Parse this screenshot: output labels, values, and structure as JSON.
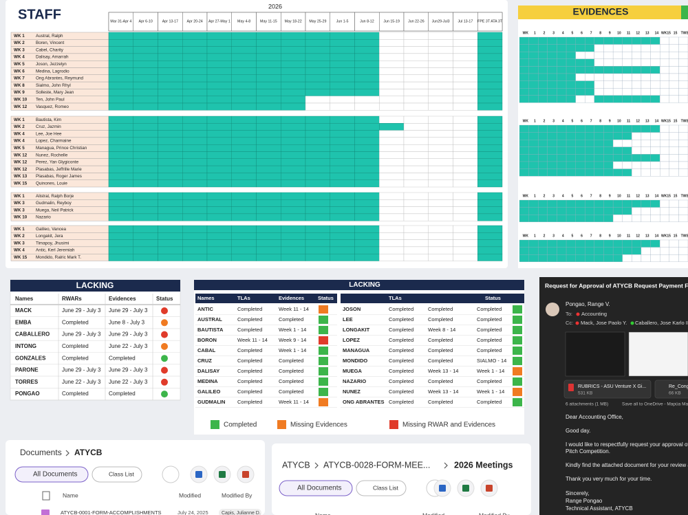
{
  "staff": {
    "title": "STAFF",
    "year": "2026",
    "columns": [
      "Mar 31-Apr 4",
      "Apr 6-10",
      "Apr 13-17",
      "Apr 20-24",
      "Apr 27-May 1",
      "May 4-8",
      "May 11-15",
      "May 18-22",
      "May 25-29",
      "Jun 1-5",
      "Jun 8-12",
      "Jun 15-19",
      "Jun 22-26",
      "Jun29-Jul3",
      "Jul 13-17",
      "FPE 3T ATA 3T"
    ],
    "groups": [
      [
        [
          "WK 1",
          "Austral, Ralph"
        ],
        [
          "WK 2",
          "Boren, Vincent"
        ],
        [
          "WK 3",
          "Cabel, Charity"
        ],
        [
          "WK 4",
          "Dalisay, Amarrah"
        ],
        [
          "WK 5",
          "Joson, Jezzelyn"
        ],
        [
          "WK 6",
          "Medina, Lagrodio"
        ],
        [
          "WK 7",
          "Ong Abrantes, Reymund"
        ],
        [
          "WK 8",
          "Sialmo, John Rhyl"
        ],
        [
          "WK 9",
          "Solleste, Mary Jean"
        ],
        [
          "WK 10",
          "Ten, John Paul"
        ],
        [
          "WK 12",
          "Vasquez, Romeo"
        ]
      ],
      [
        [
          "WK 1",
          "Bautista, Kim"
        ],
        [
          "WK 2",
          "Cruz, Jazmin"
        ],
        [
          "WK 4",
          "Lee, Joe Hee"
        ],
        [
          "WK 4",
          "Lopez, Charmaine"
        ],
        [
          "WK 5",
          "Managua, Prince Christian"
        ],
        [
          "WK 12",
          "Nunez, Rochelle"
        ],
        [
          "WK 12",
          "Perez, Yan Glygiconte"
        ],
        [
          "WK 12",
          "Plasabas, Jeffrille Marie"
        ],
        [
          "WK 13",
          "Plasabas, Roger James"
        ],
        [
          "WK 15",
          "Quinones, Louie"
        ]
      ],
      [
        [
          "WK 1",
          "Alistral, Ralph Borje"
        ],
        [
          "WK 3",
          "Gudmalin, Reyboy"
        ],
        [
          "WK 3",
          "Muega, Neil Patrick"
        ],
        [
          "WK 10",
          "Nazario"
        ]
      ],
      [
        [
          "WK 1",
          "Galileo, Vancea"
        ],
        [
          "WK 2",
          "Longakit, Jera"
        ],
        [
          "WK 3",
          "Timapoy, Jhusimi"
        ],
        [
          "WK 4",
          "Antic, Kerl Jeremiah"
        ],
        [
          "WK 15",
          "Mondido, Ralric Mark T."
        ]
      ]
    ]
  },
  "evidences": {
    "title": "EVIDENCES",
    "columns": [
      "WK",
      "1",
      "2",
      "3",
      "4",
      "5",
      "6",
      "7",
      "8",
      "9",
      "10",
      "11",
      "12",
      "13",
      "14",
      "WK15",
      "15",
      "TWS"
    ]
  },
  "lacking_rwar": {
    "title": "LACKING",
    "headers": [
      "Names",
      "RWARs",
      "Evidences",
      "Status"
    ],
    "rows": [
      {
        "name": "MACK",
        "rwar": "June 29 - July 3",
        "evidence": "June 29 - July 3",
        "color": "#e03b2a"
      },
      {
        "name": "EMBA",
        "rwar": "Completed",
        "evidence": "June 8 - July 3",
        "color": "#f07b22"
      },
      {
        "name": "CABALLERO",
        "rwar": "June 29 - July 3",
        "evidence": "June 29 - July 3",
        "color": "#e03b2a"
      },
      {
        "name": "INTONG",
        "rwar": "Completed",
        "evidence": "June 22 - July 3",
        "color": "#f07b22"
      },
      {
        "name": "GONZALES",
        "rwar": "Completed",
        "evidence": "Completed",
        "color": "#3cb54a"
      },
      {
        "name": "PARONE",
        "rwar": "June 29 - July 3",
        "evidence": "June 29 - July 3",
        "color": "#e03b2a"
      },
      {
        "name": "TORRES",
        "rwar": "June 22 - July 3",
        "evidence": "June 22 - July 3",
        "color": "#e03b2a"
      },
      {
        "name": "PONGAO",
        "rwar": "Completed",
        "evidence": "Completed",
        "color": "#3cb54a"
      }
    ]
  },
  "lacking_tla": {
    "title": "LACKING",
    "headers": [
      "Names",
      "TLAs",
      "Evidences",
      "Status"
    ],
    "right_headers": {
      "tlas": "TLAs",
      "status": "Status"
    },
    "left_rows": [
      [
        "ANTIC",
        "Completed",
        "Week 11 - 14",
        "#f07b22"
      ],
      [
        "AUSTRAL",
        "Completed",
        "Completed",
        "#3cb54a"
      ],
      [
        "BAUTISTA",
        "Completed",
        "Week 1 - 14",
        "#3cb54a"
      ],
      [
        "BORON",
        "Week 11 - 14",
        "Week 9 - 14",
        "#e03b2a"
      ],
      [
        "CABAL",
        "Completed",
        "Week 1 - 14",
        "#3cb54a"
      ],
      [
        "CRUZ",
        "Completed",
        "Completed",
        "#3cb54a"
      ],
      [
        "DALISAY",
        "Completed",
        "Completed",
        "#3cb54a"
      ],
      [
        "MEDINA",
        "Completed",
        "Completed",
        "#3cb54a"
      ],
      [
        "GALILEO",
        "Completed",
        "Completed",
        "#3cb54a"
      ],
      [
        "GUDMALIN",
        "Completed",
        "Week 11 - 14",
        "#f07b22"
      ]
    ],
    "right_rows": [
      [
        "JOSON",
        "Completed",
        "Completed",
        "Completed",
        "#3cb54a"
      ],
      [
        "LEE",
        "Completed",
        "Completed",
        "Completed",
        "#3cb54a"
      ],
      [
        "LONGAKIT",
        "Completed",
        "Week 8 - 14",
        "Completed",
        "#3cb54a"
      ],
      [
        "LOPEZ",
        "Completed",
        "Completed",
        "Completed",
        "#3cb54a"
      ],
      [
        "MANAGUA",
        "Completed",
        "Completed",
        "Completed",
        "#3cb54a"
      ],
      [
        "MONDIDO",
        "Completed",
        "Completed",
        "SIALMO - 14",
        "#3cb54a"
      ],
      [
        "MUEGA",
        "Completed",
        "Week 13 - 14",
        "Week 1 - 14",
        "#f07b22"
      ],
      [
        "NAZARIO",
        "Completed",
        "Completed",
        "Completed",
        "#3cb54a"
      ],
      [
        "NUNEZ",
        "Completed",
        "Week 13 - 14",
        "Week 1 - 14",
        "#f07b22"
      ],
      [
        "ONG ABRANTES",
        "Completed",
        "Completed",
        "Completed",
        "#3cb54a"
      ]
    ],
    "legend": [
      {
        "label": "Completed",
        "color": "#3cb54a"
      },
      {
        "label": "Missing Evidences",
        "color": "#f07b22"
      },
      {
        "label": "Missing RWAR and Evidences",
        "color": "#e03b2a"
      }
    ]
  },
  "documents": {
    "breadcrumb": [
      "Documents",
      "ATYCB"
    ],
    "buttons": [
      "All Documents",
      "Class List"
    ],
    "columns": [
      "Name",
      "Modified",
      "Modified By"
    ],
    "row": [
      "ATYCB-0001-FORM-ACCOMPLISHMENTS",
      "July 24, 2025",
      "Capis, Julianne D."
    ]
  },
  "meetings": {
    "breadcrumb": [
      "ATYCB",
      "ATYCB-0028-FORM-MEE...",
      "2026 Meetings"
    ],
    "buttons": [
      "All Documents",
      "Class List"
    ],
    "columns": [
      "Name",
      "Modified",
      "Modified By"
    ]
  },
  "email": {
    "subject": "Request for Approval of ATYCB Request Payment For",
    "sender": "Pongao, Range V.",
    "to_label": "To:",
    "to": "Accounting",
    "cc_label": "Cc:",
    "cc": [
      "Mack, Jose Paolo Y.",
      "Caballero, Jose Karlo II"
    ],
    "attachments": [
      {
        "name": "RUBRICS - ASU Venture X Gi...",
        "size": "531 KB"
      },
      {
        "name": "Re_Cong...",
        "size": "66 KB"
      }
    ],
    "attachment_count": "6 attachments (1 MB)",
    "save_all": "Save all to OneDrive - Mapúa Ma...",
    "body": [
      "Dear Accounting Office,",
      "Good day.",
      "I would like to respectfully request your approval of",
      "Pitch Competition.",
      "Kindly find the attached document for your review a",
      "Thank you very much for your time.",
      "Sincerely,",
      "Range Pongao",
      "Technical Assistant, ATYCB"
    ]
  }
}
